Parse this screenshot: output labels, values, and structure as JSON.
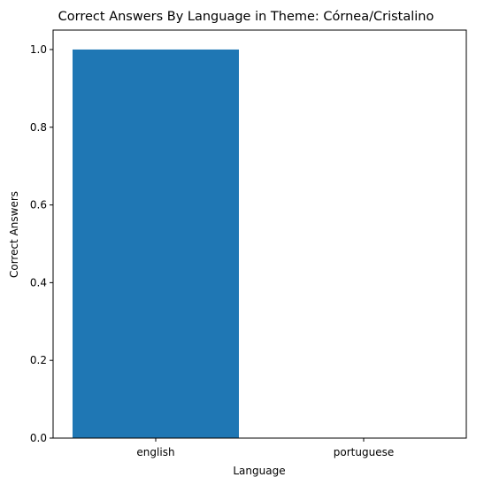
{
  "chart_data": {
    "type": "bar",
    "title": "Correct Answers By Language in Theme: Córnea/Cristalino",
    "xlabel": "Language",
    "ylabel": "Correct Answers",
    "categories": [
      "english",
      "portuguese"
    ],
    "values": [
      1.0,
      0.0
    ],
    "ylim": [
      0,
      1.05
    ],
    "yticks": [
      "0.0",
      "0.2",
      "0.4",
      "0.6",
      "0.8",
      "1.0"
    ],
    "grid": false,
    "bar_color": "#1f77b4"
  }
}
